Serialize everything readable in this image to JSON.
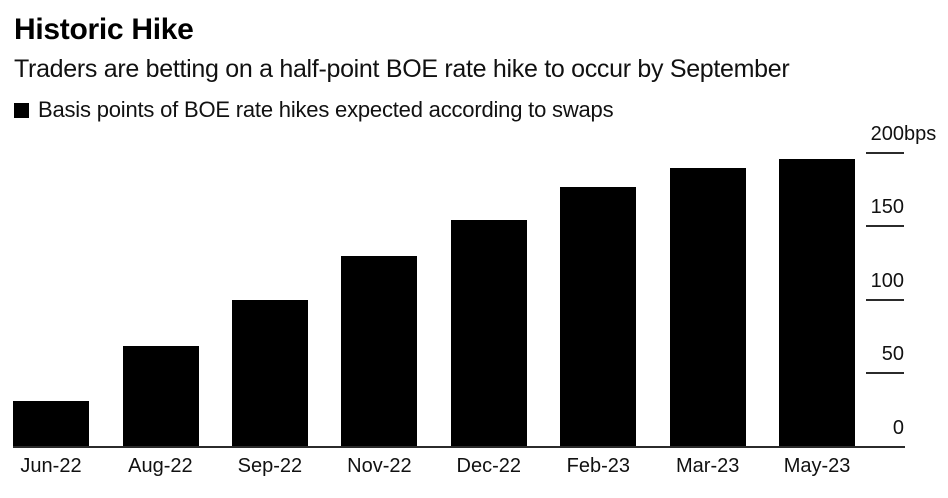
{
  "header": {
    "title": "Historic Hike",
    "subtitle": "Traders are betting on a half-point BOE rate hike to occur by September"
  },
  "legend": {
    "marker_color": "#000000",
    "label": "Basis points of BOE rate hikes expected according to swaps"
  },
  "chart_data": {
    "type": "bar",
    "title": "Historic Hike",
    "subtitle": "Traders are betting on a half-point BOE rate hike to occur by September",
    "series_name": "Basis points of BOE rate hikes expected according to swaps",
    "categories": [
      "Jun-22",
      "Aug-22",
      "Sep-22",
      "Nov-22",
      "Dec-22",
      "Feb-23",
      "Mar-23",
      "May-23"
    ],
    "values": [
      31,
      68,
      100,
      130,
      154,
      177,
      190,
      196
    ],
    "unit": "bps",
    "y_ticks": [
      0,
      50,
      100,
      150,
      200
    ],
    "y_tick_labels": [
      "0",
      "50",
      "100",
      "150",
      "200bps"
    ],
    "ylim": [
      0,
      200
    ],
    "xlabel": "",
    "ylabel": "",
    "axis_side": "right",
    "grid": false,
    "legend_position": "top-left",
    "bar_color": "#000000",
    "background_color": "#ffffff"
  }
}
